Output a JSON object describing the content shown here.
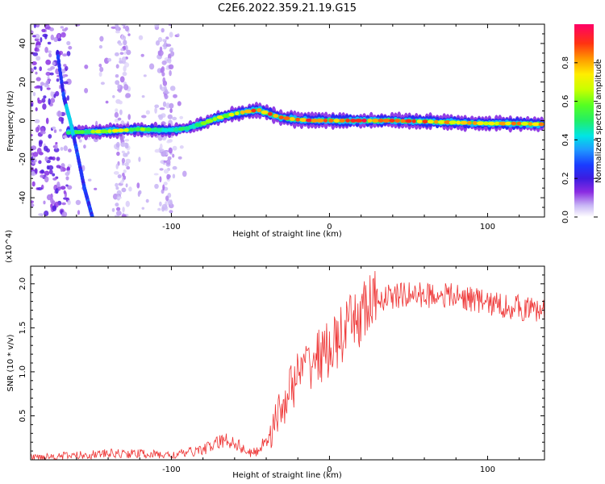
{
  "title": "C2E6.2022.359.21.19.G15",
  "chart_data": [
    {
      "type": "heatmap",
      "xlabel": "Height of straight line (km)",
      "ylabel": "Frequency (Hz)",
      "xlim": [
        -189,
        136
      ],
      "ylim": [
        -50,
        50
      ],
      "xticks": [
        -100,
        0,
        100
      ],
      "yticks": [
        -40,
        -20,
        0,
        20,
        40
      ],
      "colorbar": {
        "label": "Normalized spectral amplitude",
        "ticks": [
          "0.0",
          "0.2",
          "0.4",
          "0.6",
          "0.8"
        ],
        "range": [
          0,
          1
        ]
      },
      "ridge": {
        "x": [
          -160,
          -140,
          -120,
          -100,
          -90,
          -80,
          -70,
          -60,
          -50,
          -45,
          -40,
          -30,
          -20,
          -10,
          0,
          20,
          40,
          60,
          80,
          100,
          120,
          136
        ],
        "freq": [
          -6,
          -5.5,
          -4.5,
          -5,
          -4,
          -1.5,
          1.5,
          3.5,
          5,
          5.5,
          4,
          1.5,
          0.5,
          0,
          0,
          0,
          0,
          -0.5,
          -1,
          -1.5,
          -1.5,
          -2
        ],
        "amplitude": [
          0.5,
          0.7,
          0.6,
          0.45,
          0.5,
          0.55,
          0.65,
          0.7,
          0.85,
          0.9,
          0.85,
          0.9,
          0.9,
          0.85,
          0.85,
          0.9,
          0.85,
          0.85,
          0.75,
          0.75,
          0.8,
          0.8
        ]
      },
      "streak": {
        "x": [
          -172,
          -168,
          -164,
          -160,
          -155,
          -150
        ],
        "freq": [
          35,
          12,
          0,
          -15,
          -35,
          -50
        ]
      }
    },
    {
      "type": "line",
      "xlabel": "Height of straight line (km)",
      "ylabel": "SNR (10 * v/v)",
      "y_multiplier": "(x10^4)",
      "xlim": [
        -189,
        136
      ],
      "ylim": [
        0,
        22000
      ],
      "xticks": [
        -100,
        0,
        100
      ],
      "ytick_labels": [
        "0.5",
        "1.0",
        "1.5",
        "2.0"
      ],
      "ytick_values": [
        5000,
        10000,
        15000,
        20000
      ],
      "color": "#ee3333",
      "x": [
        -189,
        -160,
        -140,
        -120,
        -100,
        -90,
        -80,
        -75,
        -70,
        -65,
        -60,
        -55,
        -50,
        -45,
        -40,
        -35,
        -30,
        -25,
        -20,
        -15,
        -10,
        -5,
        0,
        5,
        10,
        15,
        20,
        25,
        30,
        35,
        40,
        50,
        60,
        70,
        80,
        90,
        100,
        110,
        120,
        130,
        136
      ],
      "y": [
        300,
        500,
        700,
        700,
        500,
        800,
        1200,
        1500,
        2000,
        2200,
        2000,
        1300,
        700,
        1000,
        2500,
        4000,
        6000,
        8000,
        9500,
        10500,
        11500,
        12000,
        12500,
        13500,
        14500,
        15500,
        16500,
        17500,
        18000,
        18500,
        18500,
        18800,
        18700,
        18800,
        18500,
        18300,
        17800,
        17500,
        17300,
        17000,
        16800
      ]
    }
  ]
}
